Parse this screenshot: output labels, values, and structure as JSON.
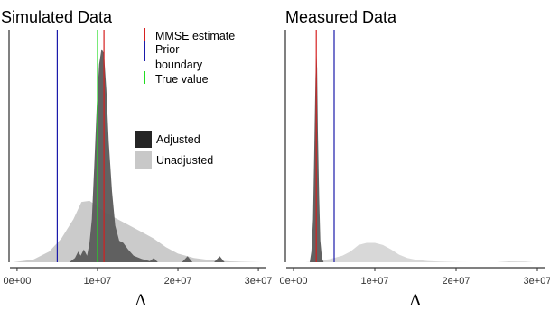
{
  "chart_data": [
    {
      "type": "area",
      "title": "Simulated Data",
      "xlabel": "Λ",
      "ylabel": "",
      "xlim": [
        -1000000,
        31000000
      ],
      "ylim": [
        0,
        1
      ],
      "x_ticks": [
        0,
        10000000,
        20000000,
        30000000
      ],
      "x_tick_labels": [
        "0e+00",
        "1e+07",
        "2e+07",
        "3e+07"
      ],
      "grid": false,
      "legend_position": "top-right",
      "series": [
        {
          "name": "Unadjusted",
          "color": "#c8c8c8",
          "x": [
            -500000,
            2000000,
            4000000,
            5500000,
            7000000,
            8000000,
            9000000,
            10000000,
            11000000,
            12500000,
            14000000,
            15500000,
            17000000,
            18500000,
            20000000,
            22000000,
            24000000,
            26000000,
            28000000,
            30500000
          ],
          "y": [
            0.0,
            0.012,
            0.05,
            0.11,
            0.2,
            0.28,
            0.285,
            0.26,
            0.23,
            0.2,
            0.17,
            0.14,
            0.11,
            0.07,
            0.04,
            0.02,
            0.01,
            0.005,
            0.002,
            0.0
          ]
        },
        {
          "name": "Adjusted",
          "color": "#5a5a5a",
          "x": [
            6500000,
            7200000,
            7600000,
            7900000,
            8300000,
            8700000,
            9000000,
            9300000,
            9600000,
            9900000,
            10200000,
            10500000,
            10800000,
            11100000,
            11400000,
            11800000,
            12200000,
            12700000,
            13200000,
            13800000,
            14500000,
            15500000,
            16500000,
            17000000,
            17500000,
            18500000,
            20500000,
            21200000,
            21800000,
            24500000,
            25200000,
            25800000,
            26500000
          ],
          "y": [
            0.0,
            0.02,
            0.05,
            0.03,
            0.06,
            0.03,
            0.09,
            0.2,
            0.45,
            0.72,
            0.92,
            0.99,
            0.97,
            0.8,
            0.56,
            0.33,
            0.17,
            0.1,
            0.09,
            0.06,
            0.03,
            0.015,
            0.005,
            0.02,
            0.0,
            0.0,
            0.0,
            0.028,
            0.0,
            0.0,
            0.028,
            0.0,
            0.0
          ]
        }
      ],
      "reference_lines": [
        {
          "name": "MMSE estimate",
          "x": 10800000,
          "color": "#d62020"
        },
        {
          "name": "Prior boundary",
          "x": 5000000,
          "color": "#1a1aaa"
        },
        {
          "name": "True value",
          "x": 10000000,
          "color": "#22dd22"
        }
      ],
      "legend": {
        "line_items": [
          {
            "label": "MMSE estimate",
            "color": "#d62020"
          },
          {
            "label": "Prior",
            "color": "#1a1aaa"
          },
          {
            "label": "boundary",
            "color": "#1a1aaa"
          },
          {
            "label": "True value",
            "color": "#22dd22"
          }
        ],
        "fill_items": [
          {
            "label": "Adjusted",
            "color": "#252525"
          },
          {
            "label": "Unadjusted",
            "color": "#c8c8c8"
          }
        ]
      }
    },
    {
      "type": "area",
      "title": "Measured Data",
      "xlabel": "Λ",
      "ylabel": "",
      "xlim": [
        -1000000,
        31000000
      ],
      "ylim": [
        0,
        1
      ],
      "x_ticks": [
        0,
        10000000,
        20000000,
        30000000
      ],
      "x_tick_labels": [
        "0e+00",
        "1e+07",
        "2e+07",
        "3e+07"
      ],
      "grid": false,
      "series": [
        {
          "name": "Unadjusted",
          "color": "#d6d6d6",
          "x": [
            1500000,
            3000000,
            4500000,
            6000000,
            7000000,
            8000000,
            9000000,
            10000000,
            11000000,
            12000000,
            13000000,
            14000000,
            15000000,
            16500000,
            18000000,
            20000000,
            22000000,
            24000000,
            25000000,
            26500000,
            28500000,
            29500000
          ],
          "y": [
            0.0,
            0.005,
            0.015,
            0.03,
            0.05,
            0.08,
            0.09,
            0.09,
            0.08,
            0.06,
            0.035,
            0.02,
            0.012,
            0.006,
            0.003,
            0.001,
            0.0,
            0.0,
            0.0,
            0.004,
            0.003,
            0.0
          ]
        },
        {
          "name": "Adjusted",
          "color": "#5a5a5a",
          "x": [
            2000000,
            2200000,
            2400000,
            2550000,
            2700000,
            2800000,
            2900000,
            3000000,
            3150000,
            3300000,
            3500000,
            3700000
          ],
          "y": [
            0.0,
            0.05,
            0.2,
            0.5,
            0.85,
            0.99,
            0.9,
            0.6,
            0.3,
            0.1,
            0.02,
            0.0
          ]
        }
      ],
      "reference_lines": [
        {
          "name": "MMSE estimate",
          "x": 2800000,
          "color": "#d62020"
        },
        {
          "name": "Prior boundary",
          "x": 5000000,
          "color": "#1a1aaa"
        }
      ]
    }
  ]
}
